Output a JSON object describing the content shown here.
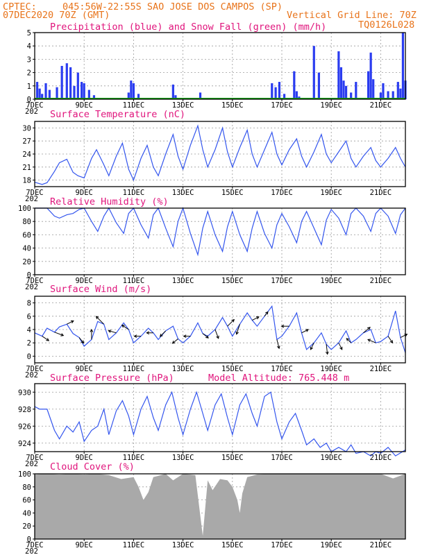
{
  "header": {
    "source": "CPTEC:",
    "location": "045:56W-22:55S  SAO JOSE DOS CAMPOS (SP)",
    "run": "07DEC2020 70Z (GMT)",
    "grid_note": "Vertical Grid Line: 70Z",
    "model": "TQ0126L028"
  },
  "colors": {
    "header": "#e8731a",
    "title": "#e0147c",
    "line": "#3355ee",
    "precip": "#2a3cf0",
    "snow": "#1aa51a",
    "cloud": "#a9a9a9",
    "arrow": "#000000"
  },
  "date_labels": [
    "7DEC",
    "9DEC",
    "11DEC",
    "13DEC",
    "15DEC",
    "17DEC",
    "19DEC",
    "21DEC"
  ],
  "date_label_days": [
    0,
    2,
    4,
    6,
    8,
    10,
    12,
    14
  ],
  "year_stub": "202",
  "chart_data": [
    {
      "id": "precip",
      "type": "bar",
      "title": "Precipitation (blue) and Snow Fall (green) (mm/h)",
      "ylim": [
        0,
        5
      ],
      "yticks": [
        0,
        1,
        2,
        3,
        4,
        5
      ],
      "x_unit": "days since 07DEC2020 00Z",
      "xlim": [
        0,
        15
      ],
      "series": [
        {
          "name": "Precipitation",
          "x": [
            0.1,
            0.2,
            0.3,
            0.45,
            0.6,
            0.9,
            1.1,
            1.3,
            1.45,
            1.6,
            1.75,
            1.9,
            2.0,
            2.2,
            2.4,
            3.8,
            3.9,
            4.0,
            4.2,
            5.6,
            5.7,
            6.7,
            9.6,
            9.75,
            9.9,
            10.1,
            10.5,
            10.6,
            10.7,
            11.3,
            11.5,
            12.3,
            12.4,
            12.5,
            12.6,
            12.8,
            13.0,
            13.5,
            13.6,
            13.7,
            14.0,
            14.1,
            14.3,
            14.5,
            14.7,
            14.8,
            14.9,
            15.0
          ],
          "values": [
            1.3,
            0.8,
            0.4,
            1.2,
            0.7,
            0.9,
            2.5,
            2.7,
            2.4,
            1.0,
            2.0,
            1.3,
            1.2,
            0.7,
            0.3,
            0.5,
            1.4,
            1.2,
            0.4,
            1.1,
            0.3,
            0.5,
            1.2,
            0.9,
            1.3,
            0.4,
            2.1,
            0.6,
            0.2,
            4.0,
            2.0,
            3.6,
            2.4,
            1.4,
            1.0,
            0.5,
            1.3,
            2.1,
            3.5,
            1.5,
            0.5,
            1.2,
            0.6,
            0.6,
            1.3,
            0.8,
            5.0,
            1.4
          ]
        },
        {
          "name": "Snow Fall",
          "x": [
            0,
            15
          ],
          "values": [
            0,
            0
          ]
        }
      ]
    },
    {
      "id": "temperature",
      "type": "line",
      "title": "Surface Temperature (nC)",
      "ylim": [
        16.5,
        31.5
      ],
      "yticks": [
        18,
        21,
        24,
        27,
        30
      ],
      "xlim": [
        0,
        15
      ],
      "series": [
        {
          "name": "Surface Temperature",
          "x": [
            0,
            0.3,
            0.5,
            0.8,
            1.0,
            1.3,
            1.55,
            1.75,
            2.0,
            2.3,
            2.5,
            2.8,
            3.0,
            3.3,
            3.55,
            3.8,
            4.0,
            4.3,
            4.55,
            4.8,
            5.0,
            5.3,
            5.6,
            5.8,
            6.0,
            6.3,
            6.6,
            6.8,
            7.0,
            7.3,
            7.6,
            7.8,
            8.0,
            8.3,
            8.6,
            8.8,
            9.0,
            9.3,
            9.6,
            9.8,
            10.0,
            10.3,
            10.6,
            10.8,
            11.0,
            11.3,
            11.6,
            11.8,
            12.0,
            12.3,
            12.6,
            12.8,
            13.0,
            13.3,
            13.6,
            13.8,
            14.0,
            14.3,
            14.6,
            14.8,
            15.0
          ],
          "values": [
            17.5,
            17.0,
            17.4,
            20.0,
            22.0,
            22.8,
            19.8,
            19.0,
            18.5,
            23.0,
            25.0,
            21.5,
            19.0,
            23.5,
            26.5,
            20.5,
            18.0,
            23.0,
            26.0,
            21.0,
            19.0,
            24.0,
            28.5,
            23.5,
            20.5,
            26.0,
            30.5,
            25.0,
            21.0,
            25.0,
            30.0,
            24.5,
            21.0,
            25.5,
            29.5,
            24.0,
            21.0,
            25.0,
            29.0,
            24.0,
            21.5,
            25.0,
            27.5,
            23.5,
            21.0,
            24.5,
            28.5,
            24.0,
            22.0,
            24.5,
            27.0,
            23.0,
            21.0,
            23.5,
            25.5,
            22.5,
            21.0,
            23.0,
            25.5,
            23.0,
            21.0
          ]
        }
      ]
    },
    {
      "id": "humidity",
      "type": "line",
      "title": "Relative Humidity (%)",
      "ylim": [
        0,
        100
      ],
      "yticks": [
        0,
        20,
        40,
        60,
        80,
        100
      ],
      "xlim": [
        0,
        15
      ],
      "series": [
        {
          "name": "Relative Humidity",
          "x": [
            0,
            0.3,
            0.5,
            0.8,
            1.0,
            1.3,
            1.55,
            1.8,
            2.0,
            2.3,
            2.55,
            2.8,
            3.0,
            3.3,
            3.6,
            3.8,
            4.0,
            4.3,
            4.6,
            4.8,
            5.0,
            5.3,
            5.6,
            5.8,
            6.0,
            6.3,
            6.6,
            6.8,
            7.0,
            7.3,
            7.6,
            7.8,
            8.0,
            8.3,
            8.6,
            8.8,
            9.0,
            9.3,
            9.6,
            9.8,
            10.0,
            10.3,
            10.6,
            10.8,
            11.0,
            11.3,
            11.6,
            11.8,
            12.0,
            12.3,
            12.6,
            12.8,
            13.0,
            13.3,
            13.6,
            13.8,
            14.0,
            14.3,
            14.6,
            14.8,
            15.0
          ],
          "values": [
            100,
            100,
            100,
            88,
            85,
            90,
            92,
            98,
            100,
            80,
            65,
            88,
            100,
            78,
            62,
            92,
            100,
            75,
            55,
            90,
            100,
            70,
            42,
            80,
            100,
            62,
            30,
            70,
            95,
            60,
            35,
            72,
            95,
            60,
            35,
            70,
            95,
            62,
            40,
            75,
            92,
            72,
            48,
            80,
            95,
            70,
            45,
            82,
            98,
            85,
            60,
            92,
            100,
            88,
            65,
            92,
            100,
            88,
            62,
            90,
            100
          ]
        }
      ]
    },
    {
      "id": "wind",
      "type": "line",
      "title": "Surface Wind (m/s)",
      "ylim": [
        -1,
        9
      ],
      "yticks": [
        0,
        2,
        4,
        6,
        8
      ],
      "xlim": [
        0,
        15
      ],
      "series": [
        {
          "name": "Wind Speed",
          "x": [
            0,
            0.3,
            0.5,
            0.8,
            1.0,
            1.3,
            1.55,
            1.8,
            2.0,
            2.3,
            2.55,
            2.8,
            3.0,
            3.3,
            3.6,
            3.8,
            4.0,
            4.3,
            4.6,
            4.8,
            5.0,
            5.3,
            5.6,
            5.8,
            6.0,
            6.3,
            6.6,
            6.8,
            7.0,
            7.3,
            7.6,
            7.8,
            8.0,
            8.3,
            8.6,
            8.8,
            9.0,
            9.3,
            9.6,
            9.8,
            10.0,
            10.3,
            10.6,
            10.8,
            11.0,
            11.3,
            11.6,
            11.8,
            12.0,
            12.3,
            12.6,
            12.8,
            13.0,
            13.3,
            13.6,
            13.8,
            14.0,
            14.3,
            14.6,
            14.8,
            15.0
          ],
          "values": [
            3.5,
            3.0,
            4.2,
            3.6,
            4.4,
            4.8,
            3.4,
            2.8,
            1.5,
            2.5,
            5.2,
            4.8,
            2.5,
            3.5,
            5.0,
            4.0,
            2.0,
            3.0,
            4.2,
            3.5,
            2.5,
            3.8,
            4.5,
            2.6,
            2.0,
            3.0,
            5.0,
            3.4,
            3.0,
            4.0,
            5.8,
            4.5,
            3.0,
            4.8,
            6.5,
            5.4,
            4.5,
            6.0,
            7.5,
            2.5,
            3.0,
            4.5,
            6.5,
            3.5,
            1.0,
            2.0,
            3.5,
            1.8,
            1.0,
            2.0,
            3.8,
            2.0,
            2.5,
            3.5,
            4.0,
            2.0,
            2.2,
            3.0,
            6.8,
            2.8,
            0.5
          ]
        },
        {
          "name": "Wind Vectors",
          "x": [
            0.3,
            0.8,
            1.3,
            1.8,
            2.3,
            2.8,
            3.3,
            3.8,
            4.3,
            4.8,
            5.3,
            5.8,
            6.3,
            6.8,
            7.3,
            7.8,
            8.3,
            8.8,
            9.3,
            9.8,
            10.3,
            10.8,
            11.3,
            11.8,
            12.3,
            12.8,
            13.3,
            13.8,
            14.3,
            14.8
          ],
          "u": [
            0.6,
            0.8,
            0.6,
            0.4,
            0.0,
            -0.7,
            -0.7,
            -0.6,
            -0.6,
            -0.6,
            -0.5,
            -0.5,
            -0.6,
            0.5,
            0.3,
            0.6,
            -0.3,
            0.6,
            0.3,
            0.2,
            -0.7,
            0.6,
            -0.3,
            0.1,
            0.3,
            -0.4,
            0.6,
            -0.7,
            0.4,
            0.6
          ],
          "v": [
            -0.4,
            -0.3,
            0.3,
            -0.5,
            0.9,
            0.7,
            0.2,
            0.4,
            0.0,
            0.0,
            -0.5,
            -0.4,
            0.0,
            -0.4,
            -0.8,
            0.6,
            -0.9,
            0.3,
            0.4,
            -0.8,
            0.0,
            0.3,
            -0.6,
            -0.9,
            -0.6,
            0.4,
            0.5,
            0.3,
            -0.6,
            0.3
          ]
        }
      ]
    },
    {
      "id": "pressure",
      "type": "line",
      "title": "Surface Pressure (hPa)",
      "subtitle": "Model Altitude: 765.448 m",
      "ylim": [
        923,
        931
      ],
      "yticks": [
        924,
        926,
        928,
        930
      ],
      "xlim": [
        0,
        15
      ],
      "series": [
        {
          "name": "Surface Pressure",
          "x": [
            0,
            0.2,
            0.5,
            0.8,
            1.0,
            1.3,
            1.55,
            1.8,
            2.0,
            2.3,
            2.55,
            2.8,
            3.0,
            3.3,
            3.55,
            3.8,
            4.0,
            4.3,
            4.55,
            4.8,
            5.0,
            5.3,
            5.55,
            5.8,
            6.0,
            6.3,
            6.55,
            6.8,
            7.0,
            7.3,
            7.55,
            7.8,
            8.0,
            8.3,
            8.55,
            8.8,
            9.0,
            9.3,
            9.55,
            9.8,
            10.0,
            10.3,
            10.55,
            10.8,
            11.0,
            11.3,
            11.55,
            11.8,
            12.0,
            12.3,
            12.6,
            12.8,
            13.0,
            13.3,
            13.6,
            13.8,
            14.0,
            14.3,
            14.6,
            15.0
          ],
          "values": [
            928.3,
            928.0,
            928.0,
            925.5,
            924.5,
            926.0,
            925.3,
            926.5,
            924.2,
            925.5,
            926.0,
            928.0,
            925.0,
            927.8,
            929.0,
            927.2,
            925.0,
            928.0,
            929.5,
            927.0,
            925.5,
            928.5,
            930.0,
            927.0,
            925.0,
            928.0,
            930.0,
            927.5,
            925.5,
            928.5,
            929.8,
            927.0,
            925.0,
            928.5,
            929.8,
            927.5,
            926.0,
            929.5,
            930.0,
            926.5,
            924.5,
            926.5,
            927.5,
            925.5,
            923.8,
            924.5,
            923.5,
            924.0,
            923.0,
            923.5,
            923.0,
            923.8,
            922.8,
            923.0,
            922.5,
            923.0,
            922.8,
            923.5,
            922.5,
            923.2
          ]
        }
      ]
    },
    {
      "id": "cloud",
      "type": "area",
      "title": "Cloud Cover (%)",
      "ylim": [
        0,
        100
      ],
      "yticks": [
        0,
        20,
        40,
        60,
        80,
        100
      ],
      "xlim": [
        0,
        15
      ],
      "series": [
        {
          "name": "Cloud Cover",
          "x": [
            0,
            0.5,
            1.0,
            1.5,
            2.0,
            2.5,
            3.0,
            3.5,
            4.0,
            4.2,
            4.4,
            4.6,
            4.8,
            5.0,
            5.3,
            5.6,
            6.0,
            6.5,
            6.8,
            7.0,
            7.2,
            7.5,
            7.8,
            8.0,
            8.2,
            8.3,
            8.4,
            8.6,
            9.0,
            9.5,
            10.0,
            10.5,
            11.0,
            11.5,
            12.0,
            12.5,
            13.0,
            13.5,
            14.0,
            14.5,
            15.0
          ],
          "values": [
            99,
            100,
            99,
            100,
            99,
            100,
            98,
            92,
            95,
            80,
            60,
            72,
            95,
            97,
            100,
            90,
            100,
            98,
            5,
            90,
            75,
            92,
            90,
            80,
            60,
            40,
            70,
            95,
            99,
            100,
            100,
            100,
            100,
            100,
            100,
            100,
            100,
            100,
            100,
            93,
            100
          ]
        }
      ]
    }
  ]
}
